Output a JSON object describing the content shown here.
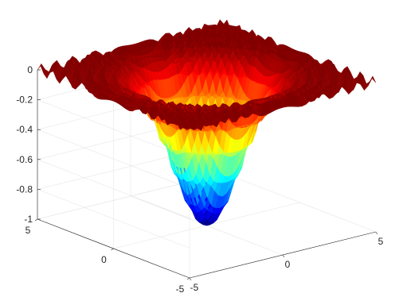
{
  "chart_data": {
    "type": "surface",
    "title": "",
    "xlabel": "",
    "ylabel": "",
    "zlabel": "",
    "x_range": [
      -5,
      5
    ],
    "y_range": [
      -5,
      5
    ],
    "z_range": [
      -1,
      0
    ],
    "grid": true,
    "colormap": "jet",
    "function": "z = -exp(-r^2/4) modulated by a ripple of period ~0.5 in r, r = sqrt(x^2+y^2)",
    "samples": {
      "r": [
        0.0,
        0.5,
        1.0,
        1.5,
        2.0,
        2.5,
        3.0,
        3.5,
        4.0,
        4.5,
        5.0
      ],
      "z": [
        -1.0,
        -0.94,
        -0.78,
        -0.57,
        -0.37,
        -0.21,
        -0.11,
        -0.05,
        -0.02,
        -0.01,
        0.0
      ]
    },
    "x_ticks": [
      "-5",
      "0",
      "5"
    ],
    "y_ticks": [
      "5",
      "0",
      "-5"
    ],
    "z_ticks": [
      "0",
      "-0.2",
      "-0.4",
      "-0.6",
      "-0.8",
      "-1"
    ]
  }
}
